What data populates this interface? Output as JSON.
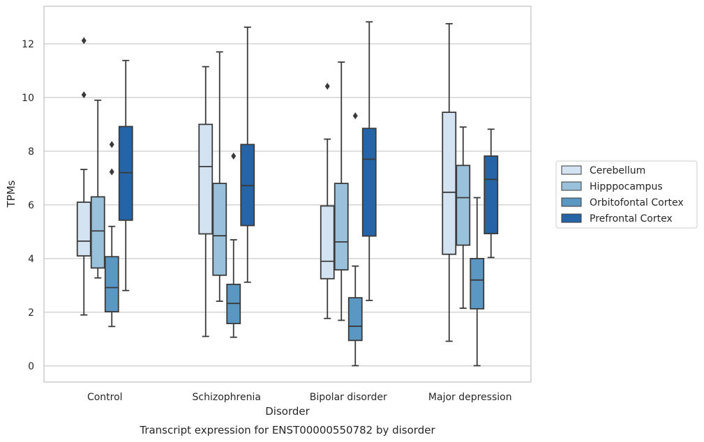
{
  "caption": "Transcript expression for ENST00000550782 by disorder",
  "chart_data": {
    "type": "box",
    "xlabel": "Disorder",
    "ylabel": "TPMs",
    "ylim": [
      -0.6,
      13.4
    ],
    "yticks": [
      0,
      2,
      4,
      6,
      8,
      10,
      12
    ],
    "grid": "horizontal",
    "legend_position": "right",
    "categories": [
      "Control",
      "Schizophrenia",
      "Bipolar disorder",
      "Major depression"
    ],
    "series": [
      {
        "name": "Cerebellum",
        "color": "#d4e3f1",
        "boxes": [
          {
            "whisker_low": 1.9,
            "q1": 4.1,
            "median": 4.65,
            "q3": 6.1,
            "whisker_high": 7.32,
            "outliers": [
              10.1,
              12.12
            ]
          },
          {
            "whisker_low": 1.1,
            "q1": 4.92,
            "median": 7.43,
            "q3": 9.0,
            "whisker_high": 11.15,
            "outliers": []
          },
          {
            "whisker_low": 1.77,
            "q1": 3.25,
            "median": 3.9,
            "q3": 5.96,
            "whisker_high": 8.45,
            "outliers": [
              10.42
            ]
          },
          {
            "whisker_low": 0.92,
            "q1": 4.16,
            "median": 6.47,
            "q3": 9.45,
            "whisker_high": 12.75,
            "outliers": []
          }
        ]
      },
      {
        "name": "Hipppocampus",
        "color": "#9ac1db",
        "boxes": [
          {
            "whisker_low": 3.28,
            "q1": 3.65,
            "median": 5.03,
            "q3": 6.3,
            "whisker_high": 9.9,
            "outliers": []
          },
          {
            "whisker_low": 2.41,
            "q1": 3.38,
            "median": 4.85,
            "q3": 6.8,
            "whisker_high": 11.7,
            "outliers": []
          },
          {
            "whisker_low": 1.7,
            "q1": 3.58,
            "median": 4.62,
            "q3": 6.8,
            "whisker_high": 11.32,
            "outliers": []
          },
          {
            "whisker_low": 2.15,
            "q1": 4.5,
            "median": 6.27,
            "q3": 7.47,
            "whisker_high": 8.9,
            "outliers": []
          }
        ]
      },
      {
        "name": "Orbitofontal Cortex",
        "color": "#5a97c3",
        "boxes": [
          {
            "whisker_low": 1.47,
            "q1": 2.02,
            "median": 2.92,
            "q3": 4.07,
            "whisker_high": 5.2,
            "outliers": [
              7.23,
              8.25
            ]
          },
          {
            "whisker_low": 1.07,
            "q1": 1.58,
            "median": 2.33,
            "q3": 3.04,
            "whisker_high": 4.7,
            "outliers": [
              7.82
            ]
          },
          {
            "whisker_low": 0.01,
            "q1": 0.95,
            "median": 1.48,
            "q3": 2.54,
            "whisker_high": 3.72,
            "outliers": [
              9.32
            ]
          },
          {
            "whisker_low": 0.01,
            "q1": 2.13,
            "median": 3.2,
            "q3": 4.0,
            "whisker_high": 6.27,
            "outliers": []
          }
        ]
      },
      {
        "name": "Prefrontal Cortex",
        "color": "#2564a6",
        "boxes": [
          {
            "whisker_low": 2.81,
            "q1": 5.43,
            "median": 7.2,
            "q3": 8.92,
            "whisker_high": 11.38,
            "outliers": []
          },
          {
            "whisker_low": 3.12,
            "q1": 5.23,
            "median": 6.72,
            "q3": 8.25,
            "whisker_high": 12.62,
            "outliers": []
          },
          {
            "whisker_low": 2.44,
            "q1": 4.84,
            "median": 7.7,
            "q3": 8.85,
            "whisker_high": 12.82,
            "outliers": []
          },
          {
            "whisker_low": 4.04,
            "q1": 4.93,
            "median": 6.95,
            "q3": 7.82,
            "whisker_high": 8.82,
            "outliers": []
          }
        ]
      }
    ]
  }
}
